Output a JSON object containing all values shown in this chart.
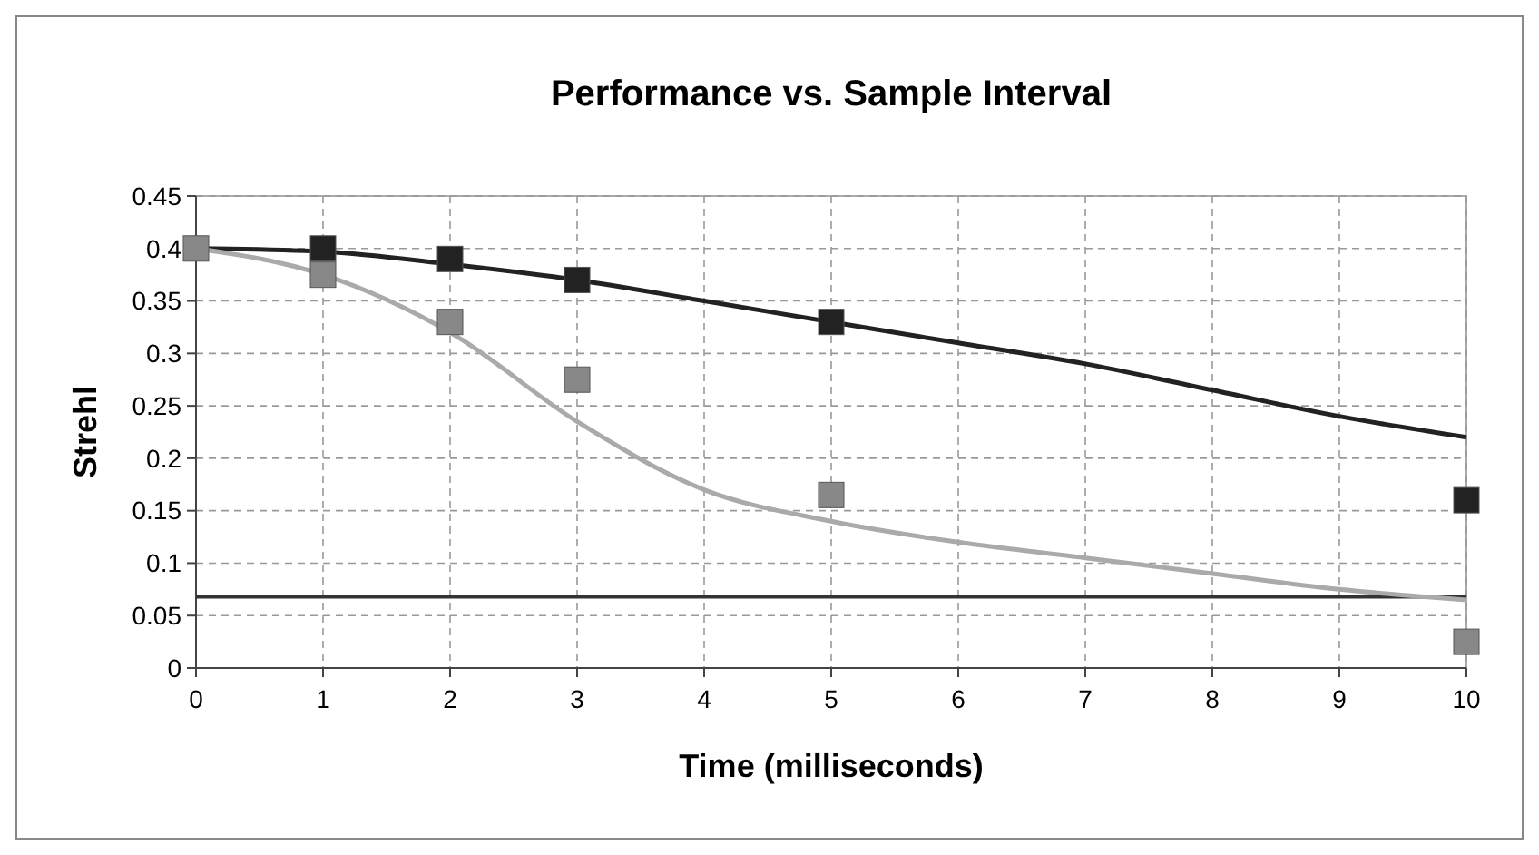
{
  "chart_data": {
    "type": "line",
    "title": "Performance vs. Sample Interval",
    "xlabel": "Time (milliseconds)",
    "ylabel": "Strehl",
    "xlim": [
      0,
      10
    ],
    "xticks": [
      0,
      1,
      2,
      3,
      4,
      5,
      6,
      7,
      8,
      9,
      10
    ],
    "ylim": [
      0,
      0.45
    ],
    "yticks": [
      0,
      0.05,
      0.1,
      0.15,
      0.2,
      0.25,
      0.3,
      0.35,
      0.4,
      0.45
    ],
    "grid": true,
    "series": [
      {
        "color": "#222222",
        "marker": "none",
        "x": [
          0,
          1,
          2,
          3,
          4,
          5,
          6,
          7,
          8,
          9,
          10
        ],
        "values": [
          0.4,
          0.397,
          0.385,
          0.37,
          0.35,
          0.33,
          0.31,
          0.29,
          0.265,
          0.24,
          0.22
        ]
      },
      {
        "color": "#aaaaaa",
        "marker": "none",
        "x": [
          0,
          1,
          2,
          3,
          4,
          5,
          6,
          7,
          8,
          9,
          10
        ],
        "values": [
          0.4,
          0.375,
          0.32,
          0.235,
          0.17,
          0.14,
          0.12,
          0.105,
          0.09,
          0.075,
          0.065
        ]
      },
      {
        "type": "scatter",
        "color": "#222222",
        "marker": "square",
        "x": [
          1,
          2,
          3,
          5,
          10
        ],
        "values": [
          0.4,
          0.39,
          0.37,
          0.33,
          0.16
        ]
      },
      {
        "type": "scatter",
        "color": "#888888",
        "marker": "square",
        "x": [
          0,
          1,
          2,
          3,
          5,
          10
        ],
        "values": [
          0.4,
          0.375,
          0.33,
          0.275,
          0.165,
          0.025
        ]
      }
    ],
    "ref_lines": [
      {
        "axis": "y",
        "value": 0.068,
        "color": "#333333"
      }
    ]
  }
}
